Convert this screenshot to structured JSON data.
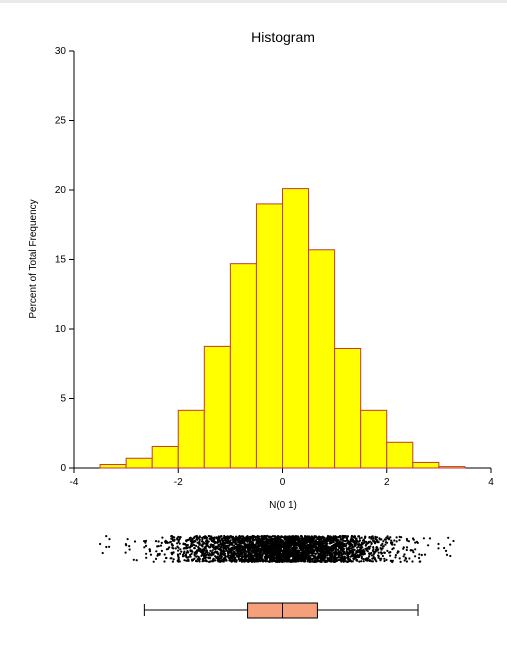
{
  "chart_data": {
    "type": "bar",
    "title": "Histogram",
    "xlabel": "N(0 1)",
    "ylabel": "Percent of Total Frequency",
    "xlim": [
      -4,
      4
    ],
    "ylim": [
      0,
      30
    ],
    "x_ticks": [
      -4,
      -2,
      0,
      2,
      4
    ],
    "y_ticks": [
      0,
      5,
      10,
      15,
      20,
      25,
      30
    ],
    "bin_width": 0.5,
    "bins": [
      {
        "start": -3.5,
        "end": -3.0,
        "value": 0.25
      },
      {
        "start": -3.0,
        "end": -2.5,
        "value": 0.7
      },
      {
        "start": -2.5,
        "end": -2.0,
        "value": 1.55
      },
      {
        "start": -2.0,
        "end": -1.5,
        "value": 4.15
      },
      {
        "start": -1.5,
        "end": -1.0,
        "value": 8.75
      },
      {
        "start": -1.0,
        "end": -0.5,
        "value": 14.7
      },
      {
        "start": -0.5,
        "end": 0.0,
        "value": 19.0
      },
      {
        "start": 0.0,
        "end": 0.5,
        "value": 20.1
      },
      {
        "start": 0.5,
        "end": 1.0,
        "value": 15.7
      },
      {
        "start": 1.0,
        "end": 1.5,
        "value": 8.6
      },
      {
        "start": 1.5,
        "end": 2.0,
        "value": 4.15
      },
      {
        "start": 2.0,
        "end": 2.5,
        "value": 1.85
      },
      {
        "start": 2.5,
        "end": 3.0,
        "value": 0.4
      },
      {
        "start": 3.0,
        "end": 3.5,
        "value": 0.1
      }
    ],
    "grid": false,
    "bar_color": "#ffff00",
    "bar_edge_color": "#c0393b",
    "dot_plot": {
      "range": [
        -3.5,
        3.3
      ],
      "color": "#000000"
    },
    "box_plot": {
      "whisker_low": -2.65,
      "q1": -0.67,
      "median": 0.0,
      "q3": 0.67,
      "whisker_high": 2.6,
      "box_color": "#f5a07a"
    }
  }
}
